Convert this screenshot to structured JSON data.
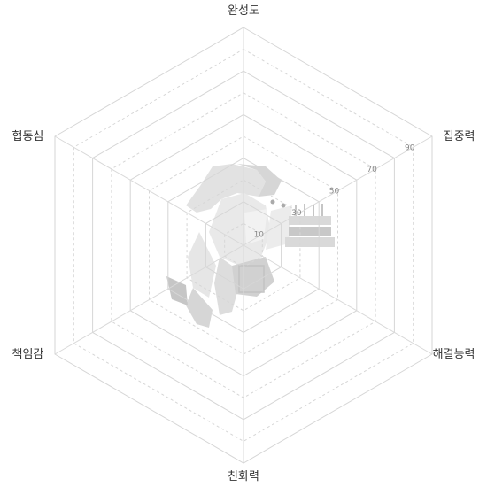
{
  "chart_data": {
    "type": "radar",
    "axes": [
      "완성도",
      "집중력",
      "해결능력",
      "친화력",
      "책임감",
      "협동심"
    ],
    "series": [
      {
        "values": [
          0,
          0,
          0,
          0,
          0,
          0
        ]
      }
    ],
    "rmin": 0,
    "rmax": 100,
    "solid_rings": [
      20,
      40,
      60,
      80,
      100
    ],
    "dashed_rings": [
      10,
      30,
      50,
      70,
      90
    ],
    "tick_labels": [
      "10",
      "30",
      "50",
      "70",
      "90"
    ],
    "grid": true,
    "legend": "none",
    "colors": {
      "grid_solid": "#d6d6d6",
      "grid_dashed": "#d6d6d6",
      "spokes": "#d9d9d9",
      "label_text": "#333333",
      "tick_text": "#888888",
      "illustration": "#cfcfcf"
    }
  },
  "watermark": {
    "icon": "figure-with-cake-illustration"
  }
}
